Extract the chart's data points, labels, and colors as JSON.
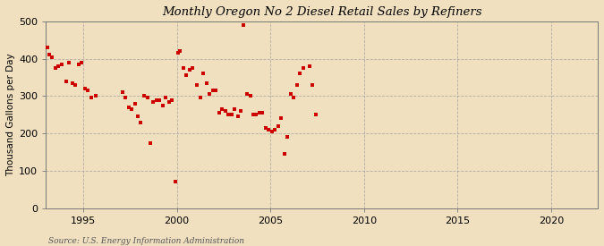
{
  "title": "Monthly Oregon No 2 Diesel Retail Sales by Refiners",
  "ylabel": "Thousand Gallons per Day",
  "source": "Source: U.S. Energy Information Administration",
  "background_color": "#f0e0c0",
  "plot_bg_color": "#f0e0c0",
  "marker_color": "#cc0000",
  "xlim": [
    1993.0,
    2022.5
  ],
  "ylim": [
    0,
    500
  ],
  "yticks": [
    0,
    100,
    200,
    300,
    400,
    500
  ],
  "xticks": [
    1995,
    2000,
    2005,
    2010,
    2015,
    2020
  ],
  "data_x": [
    1993.08,
    1993.17,
    1993.33,
    1993.5,
    1993.67,
    1993.83,
    1994.08,
    1994.25,
    1994.42,
    1994.58,
    1994.75,
    1994.92,
    1995.08,
    1995.25,
    1995.42,
    1995.67,
    1997.08,
    1997.25,
    1997.42,
    1997.58,
    1997.75,
    1997.92,
    1998.08,
    1998.25,
    1998.42,
    1998.58,
    1998.75,
    1998.92,
    1999.08,
    1999.25,
    1999.42,
    1999.58,
    1999.75,
    1999.92,
    2000.08,
    2000.17,
    2000.33,
    2000.5,
    2000.67,
    2000.83,
    2001.08,
    2001.25,
    2001.42,
    2001.58,
    2001.75,
    2001.92,
    2002.08,
    2002.25,
    2002.42,
    2002.58,
    2002.75,
    2002.92,
    2003.08,
    2003.25,
    2003.42,
    2003.58,
    2003.75,
    2003.92,
    2004.08,
    2004.25,
    2004.42,
    2004.58,
    2004.75,
    2004.92,
    2005.08,
    2005.25,
    2005.42,
    2005.58,
    2005.75,
    2005.92,
    2006.08,
    2006.25,
    2006.42,
    2006.58,
    2006.75,
    2007.08,
    2007.25,
    2007.42
  ],
  "data_y": [
    430,
    410,
    405,
    375,
    380,
    385,
    340,
    390,
    335,
    330,
    385,
    390,
    320,
    315,
    295,
    300,
    310,
    295,
    270,
    265,
    280,
    245,
    230,
    300,
    295,
    175,
    285,
    290,
    290,
    275,
    295,
    285,
    290,
    70,
    415,
    420,
    375,
    355,
    370,
    375,
    330,
    295,
    360,
    335,
    305,
    315,
    315,
    255,
    265,
    260,
    250,
    250,
    265,
    245,
    260,
    490,
    305,
    300,
    250,
    250,
    255,
    255,
    215,
    210,
    205,
    210,
    220,
    240,
    145,
    190,
    305,
    295,
    330,
    360,
    375,
    380,
    330,
    250
  ]
}
